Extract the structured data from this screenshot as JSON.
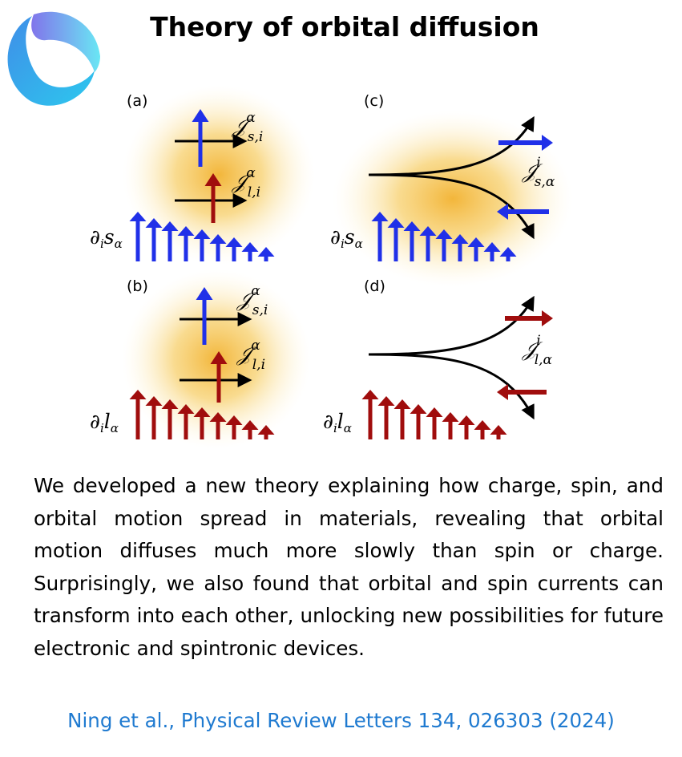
{
  "title": "Theory of orbital diffusion",
  "logo": {
    "icon": "logo-icon",
    "colors": [
      "#3f8ee8",
      "#6b5ce7",
      "#4fe3f2"
    ]
  },
  "figure": {
    "colors": {
      "spin": "#2030e8",
      "orbital": "#a00d0d",
      "glow": "#f2b230"
    },
    "panels": [
      {
        "id": "a",
        "label": "(a)",
        "gradient_label": {
          "base": "∂",
          "sub1": "i",
          "mid": "s",
          "sub2": "α"
        },
        "currents": [
          {
            "base": "𝒥",
            "sup": "α",
            "sub": "s,i"
          },
          {
            "base": "𝒥",
            "sup": "α",
            "sub": "l,i"
          }
        ]
      },
      {
        "id": "b",
        "label": "(b)",
        "gradient_label": {
          "base": "∂",
          "sub1": "i",
          "mid": "l",
          "sub2": "α"
        },
        "currents": [
          {
            "base": "𝒥",
            "sup": "α",
            "sub": "s,i"
          },
          {
            "base": "𝒥",
            "sup": "α",
            "sub": "l,i"
          }
        ]
      },
      {
        "id": "c",
        "label": "(c)",
        "gradient_label": {
          "base": "∂",
          "sub1": "i",
          "mid": "s",
          "sub2": "α"
        },
        "currents": [
          {
            "base": "𝒥",
            "sup": "i",
            "sub": "s,α"
          }
        ]
      },
      {
        "id": "d",
        "label": "(d)",
        "gradient_label": {
          "base": "∂",
          "sub1": "i",
          "mid": "l",
          "sub2": "α"
        },
        "currents": [
          {
            "base": "𝒥",
            "sup": "i",
            "sub": "l,α"
          }
        ]
      }
    ]
  },
  "body_text": "We developed a new theory explaining how charge, spin, and orbital motion spread in materials, revealing that orbital motion diffuses much more slowly than spin or charge. Surprisingly, we also found that orbital and spin currents can transform into each other, unlocking new possibilities for future electronic and spintronic devices.",
  "citation": "Ning et al., Physical Review Letters 134, 026303 (2024)"
}
